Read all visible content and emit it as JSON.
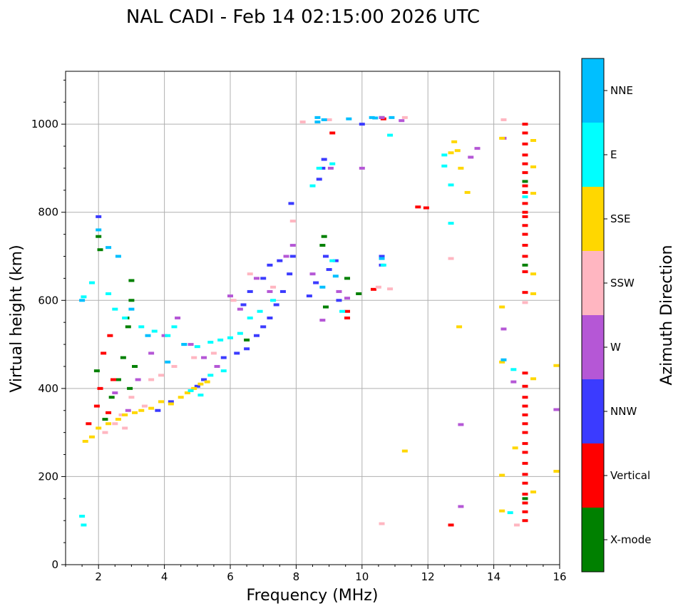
{
  "chart_data": {
    "type": "scatter",
    "title": "NAL CADI - Feb 14 02:15:00 2026 UTC",
    "xlabel": "Frequency (MHz)",
    "ylabel": "Virtual height (km)",
    "xlim": [
      1,
      16
    ],
    "ylim": [
      0,
      1120
    ],
    "xticks": [
      2,
      4,
      6,
      8,
      10,
      12,
      14,
      16
    ],
    "yticks": [
      0,
      200,
      400,
      600,
      800,
      1000
    ],
    "grid": true,
    "colorbar": {
      "title": "Azimuth Direction",
      "categories": [
        {
          "name": "X-mode",
          "color": "#008000"
        },
        {
          "name": "Vertical",
          "color": "#ff0000"
        },
        {
          "name": "NNW",
          "color": "#3b3bff"
        },
        {
          "name": "W",
          "color": "#b557d6"
        },
        {
          "name": "SSW",
          "color": "#ffb6c1"
        },
        {
          "name": "SSE",
          "color": "#ffd700"
        },
        {
          "name": "E",
          "color": "#00ffff"
        },
        {
          "name": "NNE",
          "color": "#00bfff"
        }
      ]
    },
    "series": [
      {
        "name": "X-mode",
        "points": [
          [
            2.0,
            745
          ],
          [
            2.05,
            715
          ],
          [
            1.95,
            440
          ],
          [
            2.2,
            330
          ],
          [
            2.4,
            380
          ],
          [
            2.6,
            420
          ],
          [
            2.75,
            470
          ],
          [
            2.85,
            560
          ],
          [
            2.9,
            540
          ],
          [
            3.0,
            645
          ],
          [
            3.0,
            600
          ],
          [
            2.95,
            400
          ],
          [
            3.1,
            450
          ],
          [
            6.5,
            510
          ],
          [
            8.85,
            745
          ],
          [
            8.8,
            725
          ],
          [
            8.9,
            585
          ],
          [
            9.55,
            650
          ],
          [
            9.9,
            615
          ],
          [
            10.6,
            1015
          ],
          [
            14.95,
            150
          ],
          [
            14.95,
            870
          ],
          [
            14.95,
            680
          ]
        ]
      },
      {
        "name": "Vertical",
        "points": [
          [
            2.35,
            520
          ],
          [
            2.45,
            420
          ],
          [
            2.15,
            480
          ],
          [
            2.05,
            400
          ],
          [
            2.3,
            345
          ],
          [
            1.95,
            360
          ],
          [
            1.7,
            320
          ],
          [
            9.1,
            980
          ],
          [
            9.55,
            575
          ],
          [
            9.55,
            560
          ],
          [
            10.35,
            625
          ],
          [
            10.65,
            1012
          ],
          [
            11.7,
            812
          ],
          [
            11.95,
            810
          ],
          [
            12.7,
            90
          ],
          [
            14.95,
            1000
          ],
          [
            14.95,
            980
          ],
          [
            14.95,
            955
          ],
          [
            14.95,
            930
          ],
          [
            14.95,
            910
          ],
          [
            14.95,
            890
          ],
          [
            14.95,
            860
          ],
          [
            14.95,
            845
          ],
          [
            14.95,
            820
          ],
          [
            14.95,
            800
          ],
          [
            14.95,
            790
          ],
          [
            14.95,
            770
          ],
          [
            14.95,
            750
          ],
          [
            14.95,
            725
          ],
          [
            14.95,
            700
          ],
          [
            14.95,
            665
          ],
          [
            14.95,
            618
          ],
          [
            14.95,
            435
          ],
          [
            14.95,
            405
          ],
          [
            14.95,
            380
          ],
          [
            14.95,
            360
          ],
          [
            14.95,
            340
          ],
          [
            14.95,
            320
          ],
          [
            14.95,
            300
          ],
          [
            14.95,
            275
          ],
          [
            14.95,
            255
          ],
          [
            14.95,
            230
          ],
          [
            14.95,
            205
          ],
          [
            14.95,
            185
          ],
          [
            14.95,
            160
          ],
          [
            14.95,
            140
          ],
          [
            14.95,
            120
          ],
          [
            14.95,
            100
          ]
        ]
      },
      {
        "name": "NNW",
        "points": [
          [
            2.0,
            790
          ],
          [
            5.8,
            470
          ],
          [
            6.2,
            480
          ],
          [
            6.5,
            490
          ],
          [
            6.8,
            520
          ],
          [
            7.0,
            540
          ],
          [
            7.2,
            560
          ],
          [
            7.4,
            590
          ],
          [
            7.6,
            620
          ],
          [
            7.8,
            660
          ],
          [
            7.9,
            700
          ],
          [
            7.85,
            820
          ],
          [
            7.5,
            690
          ],
          [
            7.2,
            680
          ],
          [
            7.0,
            650
          ],
          [
            6.6,
            620
          ],
          [
            6.4,
            590
          ],
          [
            5.2,
            420
          ],
          [
            5.0,
            405
          ],
          [
            8.4,
            610
          ],
          [
            8.6,
            640
          ],
          [
            8.7,
            875
          ],
          [
            8.8,
            900
          ],
          [
            8.85,
            920
          ],
          [
            8.9,
            700
          ],
          [
            9.0,
            670
          ],
          [
            9.2,
            690
          ],
          [
            9.3,
            600
          ],
          [
            10.6,
            700
          ],
          [
            10.6,
            680
          ],
          [
            10.0,
            1000
          ],
          [
            3.8,
            350
          ],
          [
            4.2,
            370
          ]
        ]
      },
      {
        "name": "W",
        "points": [
          [
            2.5,
            390
          ],
          [
            2.9,
            350
          ],
          [
            3.2,
            420
          ],
          [
            3.6,
            480
          ],
          [
            4.0,
            520
          ],
          [
            4.4,
            560
          ],
          [
            4.8,
            500
          ],
          [
            5.2,
            470
          ],
          [
            5.6,
            450
          ],
          [
            6.0,
            610
          ],
          [
            6.3,
            580
          ],
          [
            6.8,
            650
          ],
          [
            7.2,
            620
          ],
          [
            7.7,
            700
          ],
          [
            7.9,
            725
          ],
          [
            8.5,
            660
          ],
          [
            8.8,
            555
          ],
          [
            9.05,
            900
          ],
          [
            9.3,
            620
          ],
          [
            9.55,
            605
          ],
          [
            10.0,
            900
          ],
          [
            10.6,
            1015
          ],
          [
            11.2,
            1008
          ],
          [
            13.3,
            925
          ],
          [
            13.5,
            945
          ],
          [
            13.0,
            318
          ],
          [
            13.0,
            132
          ],
          [
            14.3,
            535
          ],
          [
            14.3,
            968
          ],
          [
            14.6,
            415
          ],
          [
            15.9,
            352
          ]
        ]
      },
      {
        "name": "SSW",
        "points": [
          [
            2.2,
            300
          ],
          [
            2.5,
            320
          ],
          [
            2.7,
            340
          ],
          [
            2.8,
            310
          ],
          [
            3.0,
            380
          ],
          [
            3.4,
            360
          ],
          [
            3.6,
            420
          ],
          [
            3.9,
            430
          ],
          [
            4.3,
            450
          ],
          [
            4.9,
            470
          ],
          [
            5.5,
            480
          ],
          [
            6.1,
            600
          ],
          [
            6.6,
            660
          ],
          [
            7.3,
            630
          ],
          [
            7.9,
            780
          ],
          [
            8.2,
            1005
          ],
          [
            9.0,
            1010
          ],
          [
            10.5,
            630
          ],
          [
            10.85,
            626
          ],
          [
            10.6,
            93
          ],
          [
            11.3,
            1015
          ],
          [
            12.7,
            695
          ],
          [
            14.3,
            1010
          ],
          [
            14.95,
            595
          ],
          [
            14.7,
            90
          ]
        ]
      },
      {
        "name": "SSE",
        "points": [
          [
            1.6,
            280
          ],
          [
            1.8,
            290
          ],
          [
            2.0,
            310
          ],
          [
            2.3,
            320
          ],
          [
            2.6,
            330
          ],
          [
            2.8,
            340
          ],
          [
            3.1,
            345
          ],
          [
            3.3,
            350
          ],
          [
            3.6,
            355
          ],
          [
            3.9,
            370
          ],
          [
            4.2,
            365
          ],
          [
            4.5,
            380
          ],
          [
            4.7,
            390
          ],
          [
            4.9,
            400
          ],
          [
            5.1,
            410
          ],
          [
            5.3,
            415
          ],
          [
            12.9,
            940
          ],
          [
            12.8,
            960
          ],
          [
            13.0,
            900
          ],
          [
            12.7,
            935
          ],
          [
            13.2,
            845
          ],
          [
            12.95,
            540
          ],
          [
            11.3,
            258
          ],
          [
            14.25,
            968
          ],
          [
            14.25,
            585
          ],
          [
            14.25,
            460
          ],
          [
            14.25,
            203
          ],
          [
            14.25,
            122
          ],
          [
            14.65,
            265
          ],
          [
            15.2,
            963
          ],
          [
            15.2,
            903
          ],
          [
            15.2,
            843
          ],
          [
            15.2,
            660
          ],
          [
            15.2,
            615
          ],
          [
            15.2,
            422
          ],
          [
            15.2,
            165
          ],
          [
            15.9,
            452
          ],
          [
            15.9,
            212
          ]
        ]
      },
      {
        "name": "E",
        "points": [
          [
            1.55,
            608
          ],
          [
            1.8,
            640
          ],
          [
            2.3,
            615
          ],
          [
            2.5,
            580
          ],
          [
            2.8,
            560
          ],
          [
            3.3,
            540
          ],
          [
            3.7,
            530
          ],
          [
            4.1,
            520
          ],
          [
            4.3,
            540
          ],
          [
            4.6,
            500
          ],
          [
            5.0,
            495
          ],
          [
            5.4,
            505
          ],
          [
            5.7,
            510
          ],
          [
            6.0,
            515
          ],
          [
            6.3,
            525
          ],
          [
            6.6,
            560
          ],
          [
            6.9,
            575
          ],
          [
            7.3,
            600
          ],
          [
            4.8,
            395
          ],
          [
            5.1,
            385
          ],
          [
            5.4,
            430
          ],
          [
            5.8,
            440
          ],
          [
            8.5,
            860
          ],
          [
            8.7,
            900
          ],
          [
            9.1,
            910
          ],
          [
            9.1,
            690
          ],
          [
            9.4,
            575
          ],
          [
            10.85,
            975
          ],
          [
            10.65,
            680
          ],
          [
            12.5,
            930
          ],
          [
            12.5,
            905
          ],
          [
            12.7,
            862
          ],
          [
            12.7,
            775
          ],
          [
            14.6,
            443
          ],
          [
            14.5,
            118
          ],
          [
            14.95,
            835
          ],
          [
            1.5,
            110
          ],
          [
            1.55,
            90
          ]
        ]
      },
      {
        "name": "NNE",
        "points": [
          [
            1.5,
            600
          ],
          [
            2.0,
            760
          ],
          [
            2.3,
            720
          ],
          [
            2.6,
            700
          ],
          [
            3.0,
            580
          ],
          [
            3.5,
            520
          ],
          [
            4.1,
            460
          ],
          [
            4.6,
            500
          ],
          [
            8.65,
            1015
          ],
          [
            8.65,
            1005
          ],
          [
            8.85,
            1010
          ],
          [
            8.8,
            630
          ],
          [
            9.2,
            655
          ],
          [
            9.6,
            1012
          ],
          [
            10.3,
            1015
          ],
          [
            10.4,
            1014
          ],
          [
            10.6,
            695
          ],
          [
            10.9,
            1015
          ],
          [
            14.3,
            465
          ]
        ]
      }
    ]
  }
}
